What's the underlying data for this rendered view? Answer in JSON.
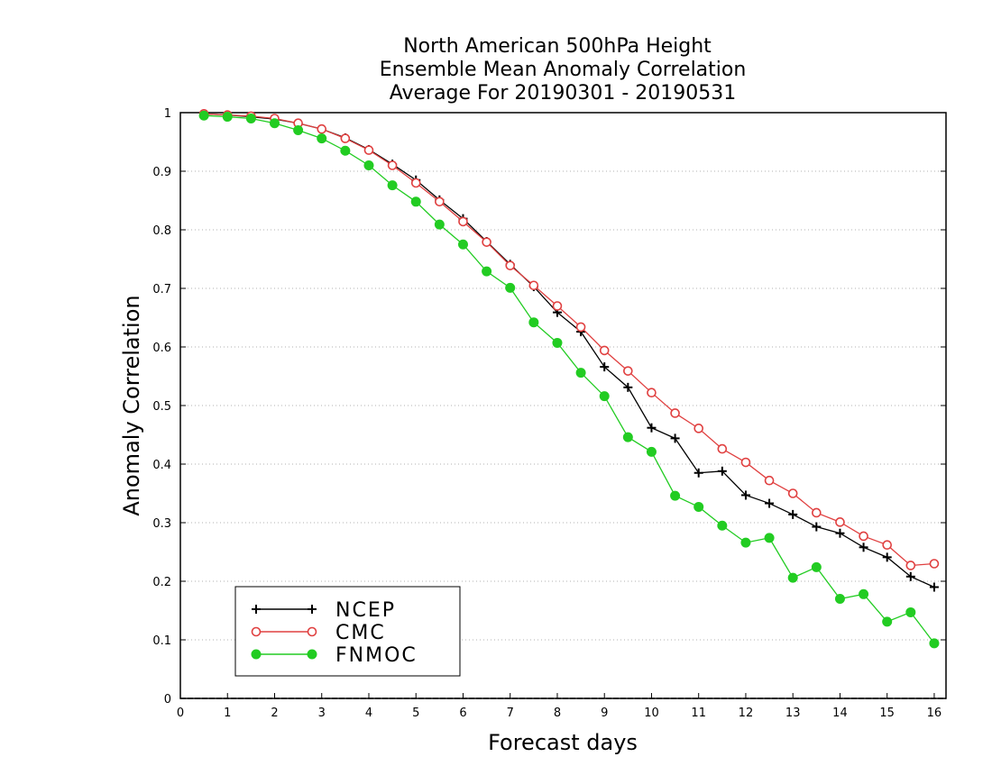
{
  "chart_data": {
    "type": "line",
    "title": [
      "North American 500hPa Height",
      "Ensemble Mean Anomaly Correlation",
      "Average For 20190301 - 20190531"
    ],
    "xlabel": "Forecast days",
    "ylabel": "Anomaly Correlation",
    "xlim": [
      0,
      16.25
    ],
    "ylim": [
      0,
      1
    ],
    "x_ticks": [
      "0",
      "1",
      "2",
      "3",
      "4",
      "5",
      "6",
      "7",
      "8",
      "9",
      "10",
      "11",
      "12",
      "13",
      "14",
      "15",
      "16"
    ],
    "y_ticks": [
      "0",
      "0.1",
      "0.2",
      "0.3",
      "0.4",
      "0.5",
      "0.6",
      "0.7",
      "0.8",
      "0.9",
      "1"
    ],
    "grid": "horizontal dotted",
    "legend_position": "bottom-left",
    "x": [
      0.5,
      1,
      1.5,
      2,
      2.5,
      3,
      3.5,
      4,
      4.5,
      5,
      5.5,
      6,
      6.5,
      7,
      7.5,
      8,
      8.5,
      9,
      9.5,
      10,
      10.5,
      11,
      11.5,
      12,
      12.5,
      13,
      13.5,
      14,
      14.5,
      15,
      15.5,
      16
    ],
    "series": [
      {
        "name": "NCEP",
        "color": "#000000",
        "marker": "plus",
        "values": [
          0.998,
          0.996,
          0.993,
          0.989,
          0.982,
          0.972,
          0.957,
          0.937,
          0.912,
          0.885,
          0.851,
          0.819,
          0.78,
          0.741,
          0.703,
          0.659,
          0.626,
          0.566,
          0.531,
          0.462,
          0.444,
          0.385,
          0.388,
          0.347,
          0.333,
          0.314,
          0.293,
          0.282,
          0.258,
          0.241,
          0.208,
          0.19
        ]
      },
      {
        "name": "CMC",
        "color": "#e04040",
        "marker": "open-circle",
        "values": [
          0.998,
          0.996,
          0.994,
          0.99,
          0.982,
          0.972,
          0.956,
          0.936,
          0.91,
          0.88,
          0.848,
          0.814,
          0.779,
          0.739,
          0.705,
          0.67,
          0.634,
          0.594,
          0.559,
          0.522,
          0.487,
          0.461,
          0.426,
          0.403,
          0.372,
          0.35,
          0.317,
          0.301,
          0.277,
          0.262,
          0.227,
          0.23
        ]
      },
      {
        "name": "FNMOC",
        "color": "#22cc22",
        "marker": "filled-circle",
        "values": [
          0.995,
          0.993,
          0.99,
          0.982,
          0.97,
          0.956,
          0.935,
          0.91,
          0.876,
          0.848,
          0.809,
          0.775,
          0.729,
          0.701,
          0.642,
          0.607,
          0.556,
          0.516,
          0.446,
          0.421,
          0.346,
          0.327,
          0.295,
          0.266,
          0.274,
          0.206,
          0.224,
          0.17,
          0.178,
          0.131,
          0.147,
          0.094
        ]
      }
    ]
  }
}
